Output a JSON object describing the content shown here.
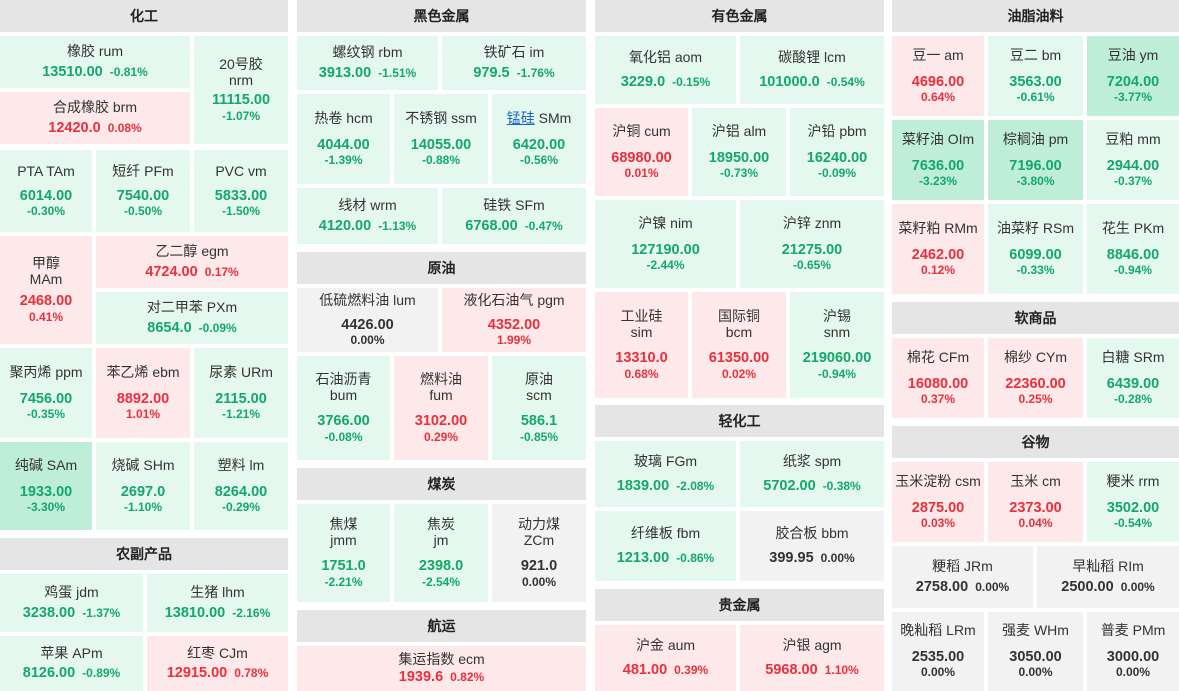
{
  "colors": {
    "up": "#e8313c",
    "down": "#13a86a",
    "flat": "#333333",
    "up_bg": "#fde8ea",
    "down_bg": "#e5f8ef",
    "down_strong_bg": "#bfeed8",
    "flat_bg": "#f2f2f2",
    "header_bg": "#e5e5e5"
  },
  "sections": {
    "chemical": "化工",
    "agri": "农副产品",
    "ferrous": "黑色金属",
    "crude": "原油",
    "coal": "煤炭",
    "shipping": "航运",
    "nonferrous": "有色金属",
    "light": "轻化工",
    "precious": "贵金属",
    "oils": "油脂油料",
    "soft": "软商品",
    "grain": "谷物"
  },
  "q": {
    "rum": {
      "name": "橡胶",
      "code": "rum",
      "price": "13510.00",
      "change": "-0.81%"
    },
    "nrm": {
      "name": "20号胶",
      "code": "nrm",
      "price": "11115.00",
      "change": "-1.07%"
    },
    "brm": {
      "name": "合成橡胶",
      "code": "brm",
      "price": "12420.0",
      "change": "0.08%"
    },
    "tam": {
      "name": "PTA",
      "code": "TAm",
      "price": "6014.00",
      "change": "-0.30%"
    },
    "pfm": {
      "name": "短纤",
      "code": "PFm",
      "price": "7540.00",
      "change": "-0.50%"
    },
    "vm": {
      "name": "PVC",
      "code": "vm",
      "price": "5833.00",
      "change": "-1.50%"
    },
    "mam": {
      "name": "甲醇",
      "code": "MAm",
      "price": "2468.00",
      "change": "0.41%"
    },
    "egm": {
      "name": "乙二醇",
      "code": "egm",
      "price": "4724.00",
      "change": "0.17%"
    },
    "pxm": {
      "name": "对二甲苯",
      "code": "PXm",
      "price": "8654.0",
      "change": "-0.09%"
    },
    "ppm": {
      "name": "聚丙烯",
      "code": "ppm",
      "price": "7456.00",
      "change": "-0.35%"
    },
    "ebm": {
      "name": "苯乙烯",
      "code": "ebm",
      "price": "8892.00",
      "change": "1.01%"
    },
    "urm": {
      "name": "尿素",
      "code": "URm",
      "price": "2115.00",
      "change": "-1.21%"
    },
    "sam": {
      "name": "纯碱",
      "code": "SAm",
      "price": "1933.00",
      "change": "-3.30%"
    },
    "shm": {
      "name": "烧碱",
      "code": "SHm",
      "price": "2697.0",
      "change": "-1.10%"
    },
    "lm": {
      "name": "塑料",
      "code": "lm",
      "price": "8264.00",
      "change": "-0.29%"
    },
    "jdm": {
      "name": "鸡蛋",
      "code": "jdm",
      "price": "3238.00",
      "change": "-1.37%"
    },
    "lhm": {
      "name": "生猪",
      "code": "lhm",
      "price": "13810.00",
      "change": "-2.16%"
    },
    "apm": {
      "name": "苹果",
      "code": "APm",
      "price": "8126.00",
      "change": "-0.89%"
    },
    "cjm": {
      "name": "红枣",
      "code": "CJm",
      "price": "12915.00",
      "change": "0.78%"
    },
    "rbm": {
      "name": "螺纹钢",
      "code": "rbm",
      "price": "3913.00",
      "change": "-1.51%"
    },
    "im": {
      "name": "铁矿石",
      "code": "im",
      "price": "979.5",
      "change": "-1.76%"
    },
    "hcm": {
      "name": "热卷",
      "code": "hcm",
      "price": "4044.00",
      "change": "-1.39%"
    },
    "ssm": {
      "name": "不锈钢",
      "code": "ssm",
      "price": "14055.00",
      "change": "-0.88%"
    },
    "smm": {
      "name": "锰硅",
      "code": "SMm",
      "price": "6420.00",
      "change": "-0.56%"
    },
    "wrm": {
      "name": "线材",
      "code": "wrm",
      "price": "4120.00",
      "change": "-1.13%"
    },
    "sfm": {
      "name": "硅铁",
      "code": "SFm",
      "price": "6768.00",
      "change": "-0.47%"
    },
    "lum": {
      "name": "低硫燃料油",
      "code": "lum",
      "price": "4426.00",
      "change": "0.00%"
    },
    "pgm": {
      "name": "液化石油气",
      "code": "pgm",
      "price": "4352.00",
      "change": "1.99%"
    },
    "bum": {
      "name": "石油沥青",
      "code": "bum",
      "price": "3766.00",
      "change": "-0.08%"
    },
    "fum": {
      "name": "燃料油",
      "code": "fum",
      "price": "3102.00",
      "change": "0.29%"
    },
    "scm": {
      "name": "原油",
      "code": "scm",
      "price": "586.1",
      "change": "-0.85%"
    },
    "jmm": {
      "name": "焦煤",
      "code": "jmm",
      "price": "1751.0",
      "change": "-2.21%"
    },
    "jm": {
      "name": "焦炭",
      "code": "jm",
      "price": "2398.0",
      "change": "-2.54%"
    },
    "zcm": {
      "name": "动力煤",
      "code": "ZCm",
      "price": "921.0",
      "change": "0.00%"
    },
    "ecm": {
      "name": "集运指数",
      "code": "ecm",
      "price": "1939.6",
      "change": "0.82%"
    },
    "aom": {
      "name": "氧化铝",
      "code": "aom",
      "price": "3229.0",
      "change": "-0.15%"
    },
    "lcm": {
      "name": "碳酸锂",
      "code": "lcm",
      "price": "101000.0",
      "change": "-0.54%"
    },
    "cum": {
      "name": "沪铜",
      "code": "cum",
      "price": "68980.00",
      "change": "0.01%"
    },
    "alm": {
      "name": "沪铝",
      "code": "alm",
      "price": "18950.00",
      "change": "-0.73%"
    },
    "pbm": {
      "name": "沪铅",
      "code": "pbm",
      "price": "16240.00",
      "change": "-0.09%"
    },
    "nim": {
      "name": "沪镍",
      "code": "nim",
      "price": "127190.00",
      "change": "-2.44%"
    },
    "znm": {
      "name": "沪锌",
      "code": "znm",
      "price": "21275.00",
      "change": "-0.65%"
    },
    "sim": {
      "name": "工业硅",
      "code": "sim",
      "price": "13310.0",
      "change": "0.68%"
    },
    "bcm": {
      "name": "国际铜",
      "code": "bcm",
      "price": "61350.00",
      "change": "0.02%"
    },
    "snm": {
      "name": "沪锡",
      "code": "snm",
      "price": "219060.00",
      "change": "-0.94%"
    },
    "fgm": {
      "name": "玻璃",
      "code": "FGm",
      "price": "1839.00",
      "change": "-2.08%"
    },
    "spm": {
      "name": "纸浆",
      "code": "spm",
      "price": "5702.00",
      "change": "-0.38%"
    },
    "fbm": {
      "name": "纤维板",
      "code": "fbm",
      "price": "1213.00",
      "change": "-0.86%"
    },
    "bbm": {
      "name": "胶合板",
      "code": "bbm",
      "price": "399.95",
      "change": "0.00%"
    },
    "aum": {
      "name": "沪金",
      "code": "aum",
      "price": "481.00",
      "change": "0.39%"
    },
    "agm": {
      "name": "沪银",
      "code": "agm",
      "price": "5968.00",
      "change": "1.10%"
    },
    "am": {
      "name": "豆一",
      "code": "am",
      "price": "4696.00",
      "change": "0.64%"
    },
    "bm": {
      "name": "豆二",
      "code": "bm",
      "price": "3563.00",
      "change": "-0.61%"
    },
    "ym": {
      "name": "豆油",
      "code": "ym",
      "price": "7204.00",
      "change": "-3.77%"
    },
    "olm": {
      "name": "菜籽油",
      "code": "OIm",
      "price": "7636.00",
      "change": "-3.23%"
    },
    "pm": {
      "name": "棕榈油",
      "code": "pm",
      "price": "7196.00",
      "change": "-3.80%"
    },
    "mm": {
      "name": "豆粕",
      "code": "mm",
      "price": "2944.00",
      "change": "-0.37%"
    },
    "rmm": {
      "name": "菜籽粕",
      "code": "RMm",
      "price": "2462.00",
      "change": "0.12%"
    },
    "rsm": {
      "name": "油菜籽",
      "code": "RSm",
      "price": "6099.00",
      "change": "-0.33%"
    },
    "pkm": {
      "name": "花生",
      "code": "PKm",
      "price": "8846.00",
      "change": "-0.94%"
    },
    "cfm": {
      "name": "棉花",
      "code": "CFm",
      "price": "16080.00",
      "change": "0.37%"
    },
    "cym": {
      "name": "棉纱",
      "code": "CYm",
      "price": "22360.00",
      "change": "0.25%"
    },
    "srm": {
      "name": "白糖",
      "code": "SRm",
      "price": "6439.00",
      "change": "-0.28%"
    },
    "csm": {
      "name": "玉米淀粉",
      "code": "csm",
      "price": "2875.00",
      "change": "0.03%"
    },
    "cm": {
      "name": "玉米",
      "code": "cm",
      "price": "2373.00",
      "change": "0.04%"
    },
    "rrm": {
      "name": "粳米",
      "code": "rrm",
      "price": "3502.00",
      "change": "-0.54%"
    },
    "jrm": {
      "name": "粳稻",
      "code": "JRm",
      "price": "2758.00",
      "change": "0.00%"
    },
    "rim": {
      "name": "早籼稻",
      "code": "RIm",
      "price": "2500.00",
      "change": "0.00%"
    },
    "lrm": {
      "name": "晚籼稻",
      "code": "LRm",
      "price": "2535.00",
      "change": "0.00%"
    },
    "whm": {
      "name": "强麦",
      "code": "WHm",
      "price": "3050.00",
      "change": "0.00%"
    },
    "pmm": {
      "name": "普麦",
      "code": "PMm",
      "price": "3000.00",
      "change": "0.00%"
    }
  }
}
